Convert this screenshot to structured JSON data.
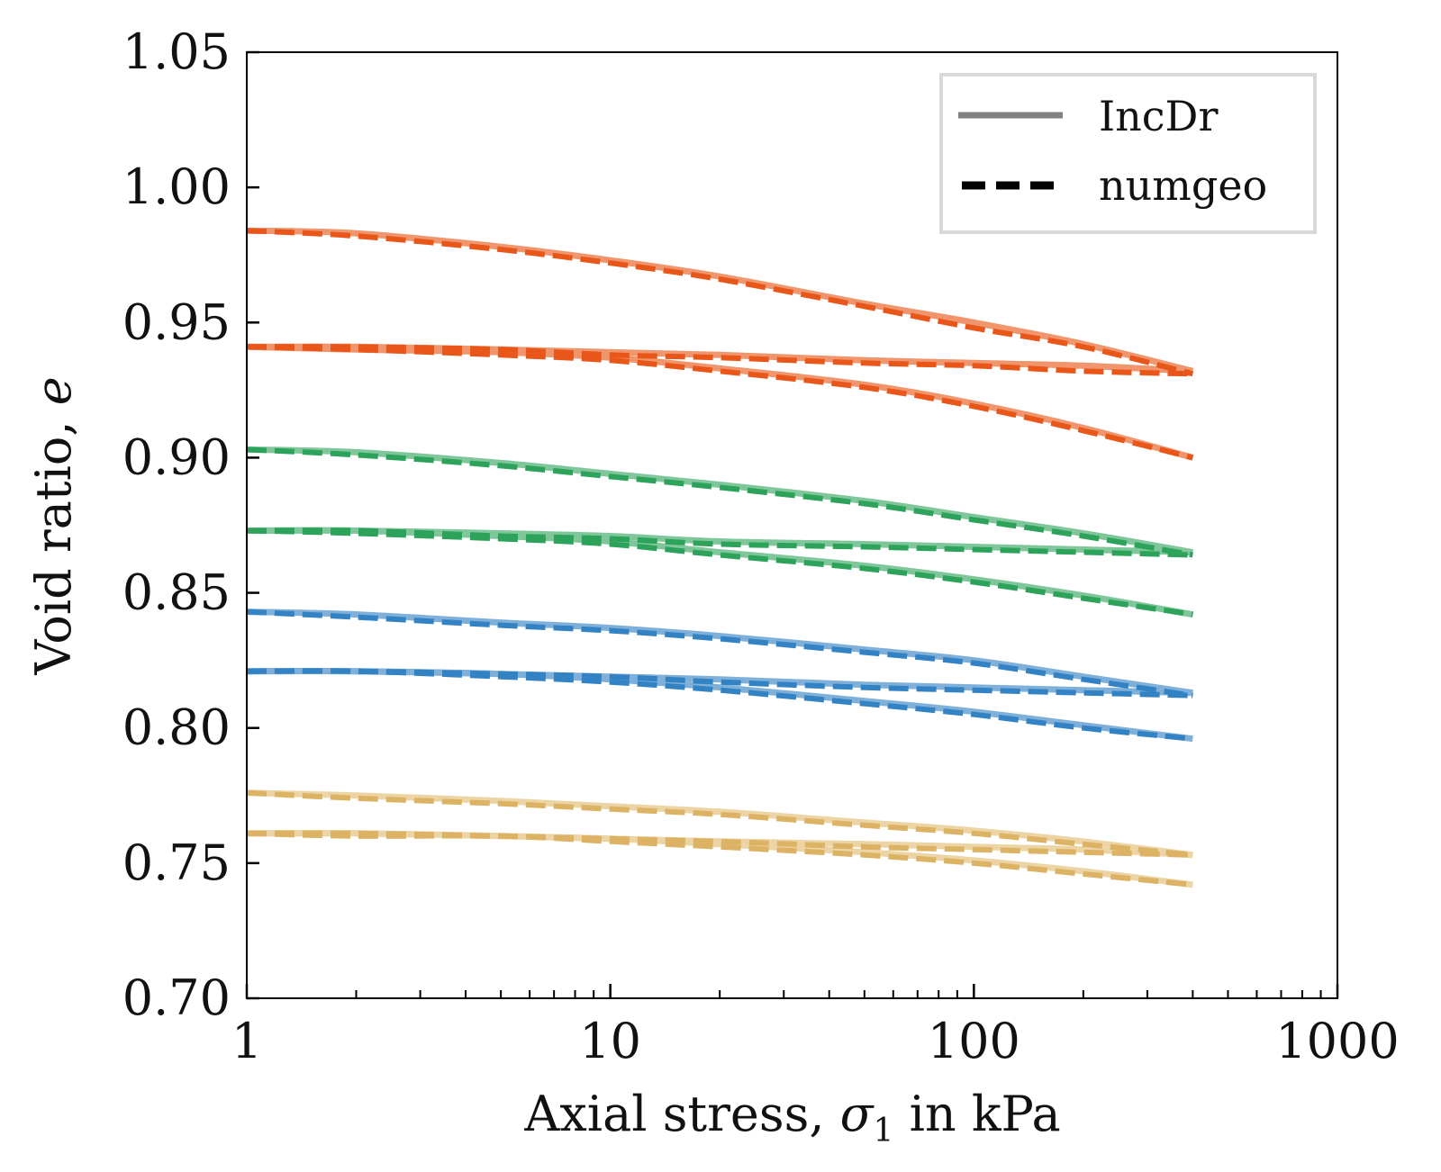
{
  "chart_data": {
    "type": "line",
    "title": "",
    "xlabel": "Axial stress, σ1 in kPa",
    "xlabel_parts": {
      "pre": "Axial stress, ",
      "symbol": "σ",
      "sub": "1",
      "post": " in kPa"
    },
    "ylabel": "Void ratio, e",
    "ylabel_parts": {
      "pre": "Void ratio, ",
      "symbol": "e"
    },
    "xscale": "log",
    "xlim": [
      1,
      1000
    ],
    "ylim": [
      0.7,
      1.05
    ],
    "xticks": [
      1,
      10,
      100,
      1000
    ],
    "xtick_labels": [
      "1",
      "10",
      "100",
      "1000"
    ],
    "yticks": [
      0.7,
      0.75,
      0.8,
      0.85,
      0.9,
      0.95,
      1.0,
      1.05
    ],
    "ytick_labels": [
      "0.70",
      "0.75",
      "0.80",
      "0.85",
      "0.90",
      "0.95",
      "1.00",
      "1.05"
    ],
    "grid": false,
    "legend": {
      "placement": "top-right",
      "entries": [
        {
          "label": "IncDr",
          "style": "solid",
          "color": "#808080"
        },
        {
          "label": "numgeo",
          "style": "dashed",
          "color": "#000000"
        }
      ]
    },
    "x": [
      1,
      2,
      5,
      10,
      20,
      50,
      100,
      200,
      400
    ],
    "series": [
      {
        "name": "orange loading IncDr",
        "group": "orange",
        "style": "solid",
        "color": "#f0956c",
        "values": [
          0.984,
          0.983,
          0.978,
          0.973,
          0.967,
          0.957,
          0.95,
          0.942,
          0.932
        ]
      },
      {
        "name": "orange loading numgeo",
        "group": "orange",
        "style": "dashed",
        "color": "#e8561a",
        "values": [
          0.984,
          0.982,
          0.977,
          0.972,
          0.966,
          0.956,
          0.948,
          0.941,
          0.931
        ]
      },
      {
        "name": "orange unloading IncDr",
        "group": "orange",
        "style": "solid",
        "color": "#f0956c",
        "values": [
          0.941,
          0.941,
          0.94,
          0.939,
          0.938,
          0.936,
          0.935,
          0.934,
          0.932
        ]
      },
      {
        "name": "orange unloading numgeo",
        "group": "orange",
        "style": "dashed",
        "color": "#e8561a",
        "values": [
          0.941,
          0.941,
          0.94,
          0.938,
          0.937,
          0.935,
          0.934,
          0.932,
          0.931
        ]
      },
      {
        "name": "orange reloading IncDr",
        "group": "orange",
        "style": "solid",
        "color": "#f0956c",
        "values": [
          0.941,
          0.94,
          0.939,
          0.937,
          0.933,
          0.927,
          0.92,
          0.911,
          0.9
        ]
      },
      {
        "name": "orange reloading numgeo",
        "group": "orange",
        "style": "dashed",
        "color": "#e8561a",
        "values": [
          0.941,
          0.94,
          0.938,
          0.936,
          0.932,
          0.926,
          0.919,
          0.91,
          0.9
        ]
      },
      {
        "name": "green loading IncDr",
        "group": "green",
        "style": "solid",
        "color": "#7fc79a",
        "values": [
          0.903,
          0.902,
          0.898,
          0.894,
          0.89,
          0.884,
          0.878,
          0.872,
          0.865
        ]
      },
      {
        "name": "green loading numgeo",
        "group": "green",
        "style": "dashed",
        "color": "#2ca25a",
        "values": [
          0.903,
          0.901,
          0.897,
          0.893,
          0.889,
          0.883,
          0.877,
          0.871,
          0.864
        ]
      },
      {
        "name": "green unloading IncDr",
        "group": "green",
        "style": "solid",
        "color": "#7fc79a",
        "values": [
          0.873,
          0.873,
          0.872,
          0.871,
          0.869,
          0.868,
          0.867,
          0.866,
          0.865
        ]
      },
      {
        "name": "green unloading numgeo",
        "group": "green",
        "style": "dashed",
        "color": "#2ca25a",
        "values": [
          0.873,
          0.873,
          0.871,
          0.87,
          0.868,
          0.867,
          0.866,
          0.865,
          0.864
        ]
      },
      {
        "name": "green reloading IncDr",
        "group": "green",
        "style": "solid",
        "color": "#7fc79a",
        "values": [
          0.873,
          0.873,
          0.871,
          0.869,
          0.865,
          0.86,
          0.855,
          0.849,
          0.842
        ]
      },
      {
        "name": "green reloading numgeo",
        "group": "green",
        "style": "dashed",
        "color": "#2ca25a",
        "values": [
          0.873,
          0.872,
          0.87,
          0.868,
          0.864,
          0.859,
          0.854,
          0.848,
          0.842
        ]
      },
      {
        "name": "blue loading IncDr",
        "group": "blue",
        "style": "solid",
        "color": "#7fb0da",
        "values": [
          0.843,
          0.842,
          0.839,
          0.837,
          0.834,
          0.829,
          0.825,
          0.819,
          0.813
        ]
      },
      {
        "name": "blue loading numgeo",
        "group": "blue",
        "style": "dashed",
        "color": "#3282c4",
        "values": [
          0.843,
          0.841,
          0.838,
          0.836,
          0.833,
          0.828,
          0.824,
          0.818,
          0.812
        ]
      },
      {
        "name": "blue unloading IncDr",
        "group": "blue",
        "style": "solid",
        "color": "#7fb0da",
        "values": [
          0.821,
          0.821,
          0.82,
          0.819,
          0.818,
          0.816,
          0.815,
          0.814,
          0.813
        ]
      },
      {
        "name": "blue unloading numgeo",
        "group": "blue",
        "style": "dashed",
        "color": "#3282c4",
        "values": [
          0.821,
          0.821,
          0.82,
          0.819,
          0.817,
          0.815,
          0.814,
          0.813,
          0.812
        ]
      },
      {
        "name": "blue reloading IncDr",
        "group": "blue",
        "style": "solid",
        "color": "#7fb0da",
        "values": [
          0.821,
          0.821,
          0.82,
          0.818,
          0.815,
          0.81,
          0.806,
          0.801,
          0.796
        ]
      },
      {
        "name": "blue reloading numgeo",
        "group": "blue",
        "style": "dashed",
        "color": "#3282c4",
        "values": [
          0.821,
          0.821,
          0.819,
          0.817,
          0.814,
          0.809,
          0.805,
          0.8,
          0.796
        ]
      },
      {
        "name": "yellow loading IncDr",
        "group": "yellow",
        "style": "solid",
        "color": "#ecd4a4",
        "values": [
          0.776,
          0.775,
          0.773,
          0.771,
          0.769,
          0.765,
          0.762,
          0.758,
          0.753
        ]
      },
      {
        "name": "yellow loading numgeo",
        "group": "yellow",
        "style": "dashed",
        "color": "#dcb264",
        "values": [
          0.776,
          0.774,
          0.772,
          0.77,
          0.768,
          0.764,
          0.761,
          0.757,
          0.753
        ]
      },
      {
        "name": "yellow unloading IncDr",
        "group": "yellow",
        "style": "solid",
        "color": "#ecd4a4",
        "values": [
          0.761,
          0.761,
          0.76,
          0.759,
          0.758,
          0.757,
          0.756,
          0.755,
          0.753
        ]
      },
      {
        "name": "yellow unloading numgeo",
        "group": "yellow",
        "style": "dashed",
        "color": "#dcb264",
        "values": [
          0.761,
          0.761,
          0.76,
          0.759,
          0.758,
          0.756,
          0.755,
          0.754,
          0.753
        ]
      },
      {
        "name": "yellow reloading IncDr",
        "group": "yellow",
        "style": "solid",
        "color": "#ecd4a4",
        "values": [
          0.761,
          0.761,
          0.76,
          0.759,
          0.757,
          0.754,
          0.751,
          0.747,
          0.742
        ]
      },
      {
        "name": "yellow reloading numgeo",
        "group": "yellow",
        "style": "dashed",
        "color": "#dcb264",
        "values": [
          0.761,
          0.76,
          0.76,
          0.758,
          0.756,
          0.753,
          0.75,
          0.746,
          0.742
        ]
      }
    ]
  }
}
